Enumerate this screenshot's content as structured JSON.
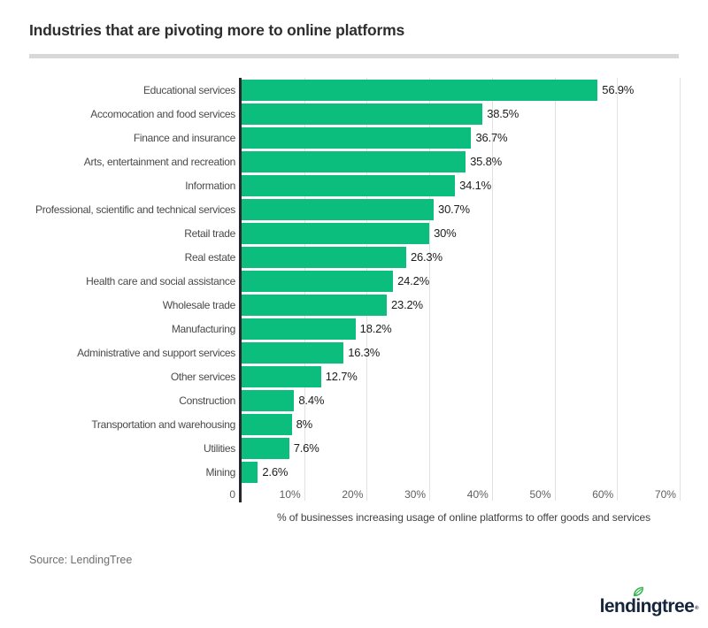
{
  "chart": {
    "title": "Industries that are pivoting more to online platforms",
    "colors": {
      "bar": "#0cbe7d",
      "axis_line": "#26282d",
      "gridline": "#e2e2e2",
      "logo_navy": "#16243c",
      "leaf_green": "#2eb54d",
      "divider_gray": "#d8d8d8"
    }
  },
  "chart_data": {
    "type": "bar",
    "orientation": "horizontal",
    "title": "Industries that are pivoting more to online platforms",
    "xlabel": "% of businesses increasing usage of online platforms to offer goods and services",
    "ylabel": "",
    "xlim": [
      0,
      71
    ],
    "grid": "vertical",
    "legend": "none",
    "categories": [
      "Educational services",
      "Accomocation and food services",
      "Finance and insurance",
      "Arts, entertainment and recreation",
      "Information",
      "Professional, scientific and technical services",
      "Retail trade",
      "Real estate",
      "Health care and social assistance",
      "Wholesale trade",
      "Manufacturing",
      "Administrative and support services",
      "Other services",
      "Construction",
      "Transportation and warehousing",
      "Utilities",
      "Mining"
    ],
    "values": [
      56.9,
      38.5,
      36.7,
      35.8,
      34.1,
      30.7,
      30,
      26.3,
      24.2,
      23.2,
      18.2,
      16.3,
      12.7,
      8.4,
      8,
      7.6,
      2.6
    ],
    "value_labels": [
      "56.9%",
      "38.5%",
      "36.7%",
      "35.8%",
      "34.1%",
      "30.7%",
      "30%",
      "26.3%",
      "24.2%",
      "23.2%",
      "18.2%",
      "16.3%",
      "12.7%",
      "8.4%",
      "8%",
      "7.6%",
      "2.6%"
    ],
    "x_tick_values": [
      0,
      10,
      20,
      30,
      40,
      50,
      60,
      70
    ],
    "x_tick_labels": [
      "0",
      "10%",
      "20%",
      "30%",
      "40%",
      "50%",
      "60%",
      "70%"
    ]
  },
  "footer": {
    "source": "Source: LendingTree",
    "logo_text": "lendingtree",
    "logo_mark": "®",
    "logo_icon": "leaf-icon"
  }
}
